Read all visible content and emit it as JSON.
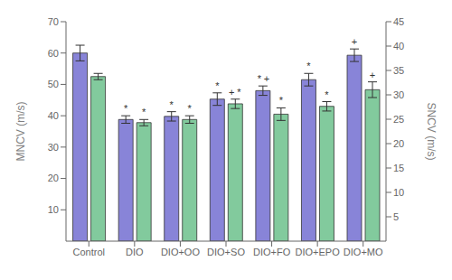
{
  "chart_data": {
    "type": "bar",
    "categories": [
      "Control",
      "DIO",
      "DIO+OO",
      "DIO+SO",
      "DIO+FO",
      "DIO+EPO",
      "DIO+MO"
    ],
    "series": [
      {
        "color": "#8884d8",
        "values": [
          60.0,
          38.8,
          39.8,
          45.3,
          48.0,
          51.5,
          59.3
        ],
        "errors": [
          2.5,
          1.2,
          1.5,
          2.0,
          1.5,
          2.0,
          2.0
        ],
        "significance": [
          [],
          [
            "*"
          ],
          [
            "*"
          ],
          [
            "*"
          ],
          [
            "*",
            "+"
          ],
          [
            "*"
          ],
          [
            "+"
          ]
        ]
      },
      {
        "color": "#82ca9d",
        "values": [
          52.5,
          37.8,
          38.8,
          43.8,
          40.5,
          43.0,
          48.3
        ],
        "errors": [
          1.0,
          1.0,
          1.2,
          1.5,
          2.0,
          1.5,
          2.5
        ],
        "significance": [
          [],
          [
            "*"
          ],
          [
            "*"
          ],
          [
            "+",
            "*"
          ],
          [
            "*"
          ],
          [
            "*"
          ],
          [
            "+"
          ]
        ]
      }
    ],
    "ylim": [
      0,
      70
    ],
    "yticks": [
      10,
      20,
      30,
      40,
      50,
      60,
      70
    ],
    "ylabel": "MNCV (m/s)",
    "y2lim": [
      0,
      45
    ],
    "y2ticks": [
      5,
      10,
      15,
      20,
      25,
      30,
      35,
      40,
      45
    ],
    "y2label": "SNCV (m/s)",
    "grid": false
  }
}
